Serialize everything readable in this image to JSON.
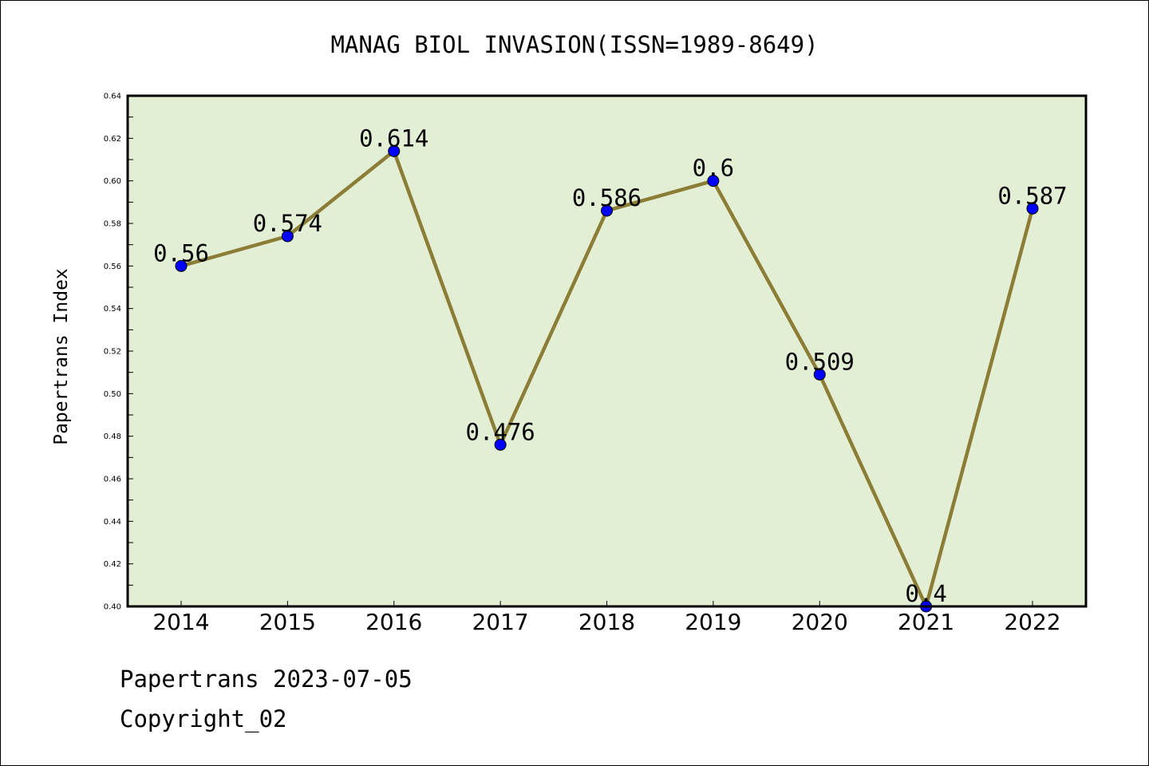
{
  "chart_data": {
    "type": "line",
    "title": "MANAG BIOL INVASION(ISSN=1989-8649)",
    "xlabel": "",
    "ylabel": "Papertrans Index",
    "categories": [
      "2014",
      "2015",
      "2016",
      "2017",
      "2018",
      "2019",
      "2020",
      "2021",
      "2022"
    ],
    "series": [
      {
        "values": [
          0.56,
          0.574,
          0.614,
          0.476,
          0.586,
          0.6,
          0.509,
          0.4,
          0.587
        ]
      }
    ],
    "data_labels": [
      "0.56",
      "0.574",
      "0.614",
      "0.476",
      "0.586",
      "0.6",
      "0.509",
      "0.4",
      "0.587"
    ],
    "ylim": [
      0.4,
      0.64
    ],
    "yticks": [
      "0.40",
      "0.42",
      "0.44",
      "0.46",
      "0.48",
      "0.50",
      "0.52",
      "0.54",
      "0.56",
      "0.58",
      "0.60",
      "0.62",
      "0.64"
    ],
    "grid": false,
    "legend": "none",
    "colors": {
      "plot_background": "#e2efd5",
      "line": "#8b7d35",
      "marker": "#0000ff"
    }
  },
  "footer": {
    "date_text": "Papertrans 2023-07-05",
    "copyright_text": "Copyright_02"
  }
}
